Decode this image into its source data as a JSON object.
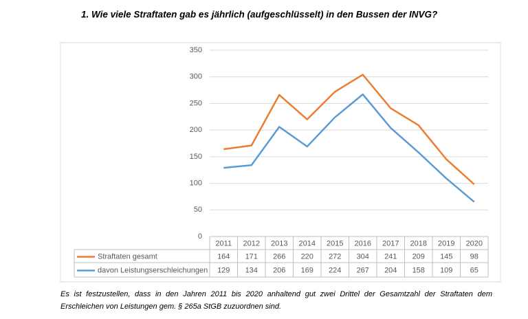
{
  "heading": "1.   Wie viele Straftaten gab es jährlich (aufgeschlüsselt) in den Bussen der INVG?",
  "chart_data": {
    "type": "line",
    "categories": [
      "2011",
      "2012",
      "2013",
      "2014",
      "2015",
      "2016",
      "2017",
      "2018",
      "2019",
      "2020"
    ],
    "series": [
      {
        "name": "Straftaten gesamt",
        "color": "#ed7d31",
        "values": [
          164,
          171,
          266,
          220,
          272,
          304,
          241,
          209,
          145,
          98
        ]
      },
      {
        "name": "davon Leistungserschleichungen",
        "color": "#5b9bd5",
        "values": [
          129,
          134,
          206,
          169,
          224,
          267,
          204,
          158,
          109,
          65
        ]
      }
    ],
    "ylim": [
      0,
      350
    ],
    "yticks": [
      0,
      50,
      100,
      150,
      200,
      250,
      300,
      350
    ],
    "grid": true,
    "data_table": true
  },
  "footnote": "Es ist festzustellen, dass in den Jahren 2011 bis 2020 anhaltend gut zwei Drittel der Gesamtzahl der Straftaten dem Erschleichen von Leistungen gem. § 265a StGB zuzuordnen sind."
}
